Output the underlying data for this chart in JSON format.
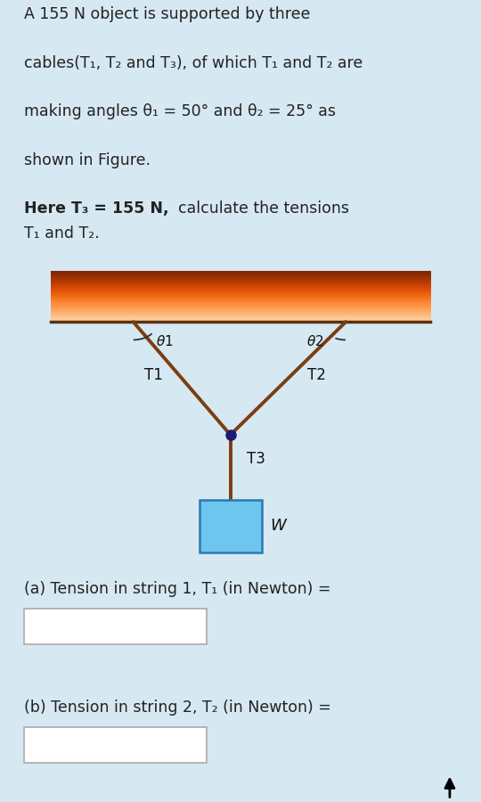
{
  "bg_color": "#d6e8f2",
  "diagram_bg": "#ffffff",
  "cable_color": "#7a3e10",
  "box_fill": "#6ec6ef",
  "box_edge": "#2a7ab0",
  "dot_color": "#1a1a7a",
  "text_color": "#222222",
  "ceiling_line_color": "#5a3010",
  "theta1_deg": 50,
  "theta2_deg": 25,
  "title_lines": [
    "A 155 N object is supported by three",
    "cables(T₁, T₂ and T₃), of which T₁ and T₂ are",
    "making angles θ₁ = 50° and θ₂ = 25° as",
    "shown in Figure."
  ],
  "bold_text": "Here T₃ = 155 N,",
  "normal_text": "  calculate the tensions",
  "t1t2_text": "T₁ and T₂.",
  "label_a": "(a) Tension in string 1, T₁ (in Newton) =",
  "label_b": "(b) Tension in string 2, T₂ (in Newton) ="
}
